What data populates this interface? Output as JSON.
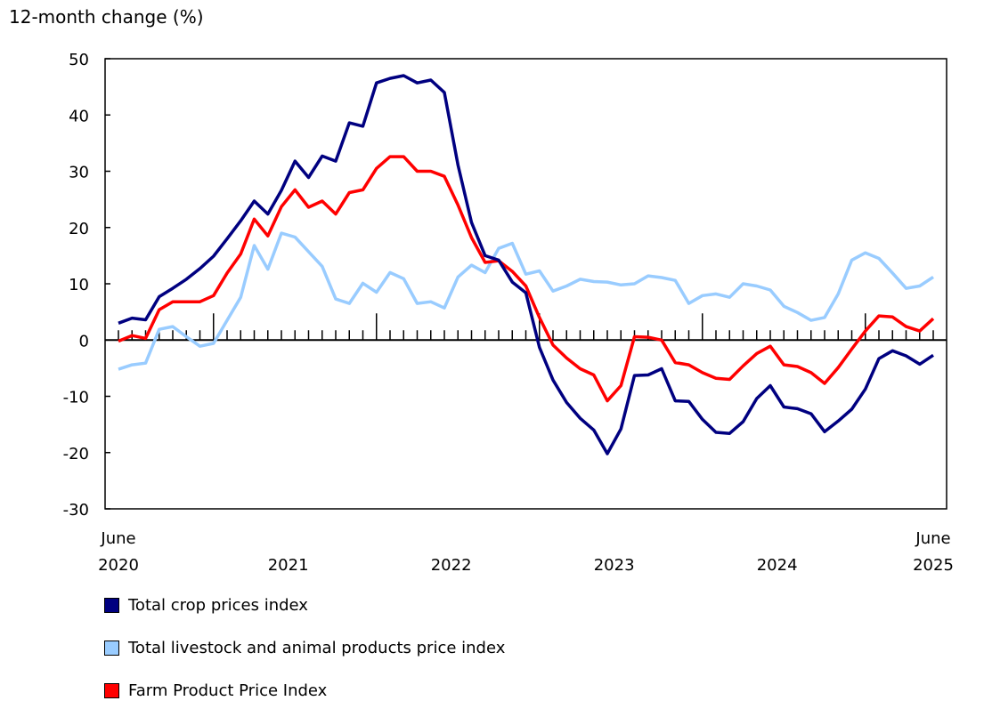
{
  "chart_data": {
    "type": "line",
    "ylabel": "12-month change (%)",
    "ylim": [
      -30,
      50
    ],
    "yticks": [
      -30,
      -20,
      -10,
      0,
      10,
      20,
      30,
      40,
      50
    ],
    "x_start": "June 2020",
    "x_end": "June 2025",
    "x_tick_labels": [
      {
        "top": "June",
        "bottom": "2020",
        "month_index": 0
      },
      {
        "top": "",
        "bottom": "2021",
        "month_index": 12.5
      },
      {
        "top": "",
        "bottom": "2022",
        "month_index": 24.5
      },
      {
        "top": "",
        "bottom": "2023",
        "month_index": 36.5
      },
      {
        "top": "",
        "bottom": "2024",
        "month_index": 48.5
      },
      {
        "top": "June",
        "bottom": "2025",
        "month_index": 60
      }
    ],
    "grid": false,
    "legend_position": "bottom",
    "series": [
      {
        "name": "Total crop prices index",
        "color": "#000080",
        "values": [
          3.0,
          3.9,
          3.6,
          7.7,
          9.2,
          10.8,
          12.7,
          14.9,
          18.0,
          21.2,
          24.7,
          22.4,
          26.6,
          31.8,
          28.9,
          32.7,
          31.8,
          38.6,
          38.0,
          45.7,
          46.5,
          47.0,
          45.7,
          46.2,
          44.0,
          31.1,
          20.9,
          15.0,
          14.2,
          10.3,
          8.4,
          -1.3,
          -7.1,
          -11.1,
          -13.9,
          -16.0,
          -20.2,
          -15.8,
          -6.3,
          -6.2,
          -5.1,
          -10.8,
          -10.9,
          -14.1,
          -16.4,
          -16.6,
          -14.5,
          -10.4,
          -8.1,
          -11.9,
          -12.2,
          -13.1,
          -16.3,
          -14.4,
          -12.3,
          -8.7,
          -3.3,
          -1.9,
          -2.8,
          -4.3,
          -2.7
        ]
      },
      {
        "name": "Total livestock and animal products price index",
        "color": "#99ccff",
        "values": [
          -5.2,
          -4.4,
          -4.1,
          1.9,
          2.4,
          0.6,
          -1.1,
          -0.6,
          3.5,
          7.6,
          16.8,
          12.6,
          19.0,
          18.3,
          15.7,
          13.1,
          7.3,
          6.5,
          10.1,
          8.5,
          12.0,
          10.9,
          6.5,
          6.8,
          5.7,
          11.2,
          13.3,
          12.0,
          16.3,
          17.2,
          11.7,
          12.3,
          8.7,
          9.6,
          10.8,
          10.4,
          10.3,
          9.8,
          10.0,
          11.4,
          11.1,
          10.6,
          6.5,
          7.9,
          8.2,
          7.6,
          10.0,
          9.6,
          8.9,
          6.0,
          4.9,
          3.5,
          4.0,
          8.2,
          14.2,
          15.5,
          14.5,
          11.9,
          9.2,
          9.6,
          11.2
        ]
      },
      {
        "name": "Farm Product Price Index",
        "color": "#ff0000",
        "values": [
          -0.2,
          0.8,
          0.3,
          5.4,
          6.8,
          6.8,
          6.8,
          7.9,
          11.9,
          15.3,
          21.5,
          18.5,
          23.7,
          26.7,
          23.6,
          24.7,
          22.4,
          26.2,
          26.7,
          30.5,
          32.6,
          32.6,
          30.0,
          30.0,
          29.1,
          24.0,
          18.2,
          13.8,
          14.1,
          12.2,
          9.6,
          4.0,
          -0.9,
          -3.2,
          -5.1,
          -6.2,
          -10.8,
          -8.1,
          0.6,
          0.5,
          0.0,
          -4.0,
          -4.4,
          -5.8,
          -6.8,
          -7.0,
          -4.6,
          -2.4,
          -1.1,
          -4.4,
          -4.7,
          -5.8,
          -7.7,
          -4.9,
          -1.6,
          1.6,
          4.3,
          4.1,
          2.4,
          1.6,
          3.8
        ]
      }
    ]
  }
}
